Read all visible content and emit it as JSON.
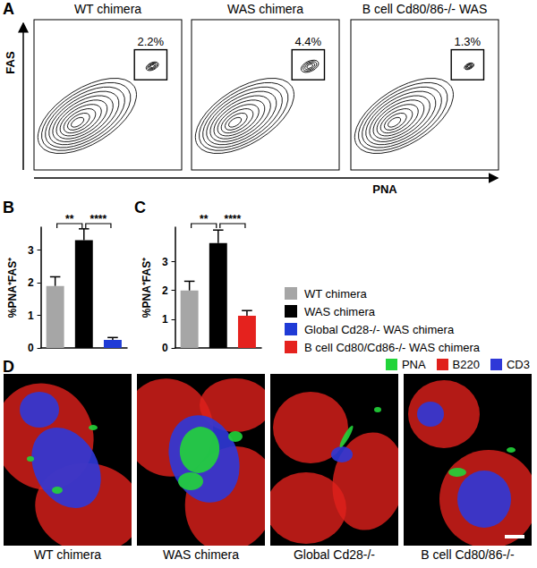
{
  "panel_labels": [
    "A",
    "B",
    "C",
    "D"
  ],
  "flow": {
    "x_label": "PNA",
    "y_label": "FAS",
    "plots": [
      {
        "title": "WT chimera",
        "gate": {
          "value": 2.2,
          "label": "2.2%"
        }
      },
      {
        "title": "WAS chimera",
        "gate": {
          "value": 4.4,
          "label": "4.4%"
        }
      },
      {
        "title": "B cell Cd80/86-/- WAS",
        "gate": {
          "value": 1.3,
          "label": "1.3%"
        }
      }
    ]
  },
  "chart_data": [
    {
      "type": "bar",
      "y_label": "%PNA⁺FAS⁺",
      "categories": [
        "WT chimera",
        "WAS chimera",
        "Global Cd28-/- WAS chimera"
      ],
      "values": [
        1.9,
        3.3,
        0.25
      ],
      "errors": [
        0.28,
        0.35,
        0.07
      ],
      "colors": [
        "#a6a6a6",
        "#000000",
        "#1f3bd6"
      ],
      "ylim": [
        0,
        3.7
      ],
      "yticks": [
        0,
        1,
        2,
        3
      ],
      "grid": false,
      "tick_labels": "y",
      "annotations": [
        {
          "between": [
            0,
            1
          ],
          "text": "**"
        },
        {
          "between": [
            1,
            2
          ],
          "text": "****"
        }
      ]
    },
    {
      "type": "bar",
      "y_label": "%PNA⁺FAS⁺",
      "categories": [
        "WT chimera",
        "WAS chimera",
        "B cell Cd80/Cd86-/- WAS chimera"
      ],
      "values": [
        2.0,
        3.65,
        1.12
      ],
      "errors": [
        0.32,
        0.45,
        0.18
      ],
      "colors": [
        "#a6a6a6",
        "#000000",
        "#e5221e"
      ],
      "ylim": [
        0,
        4.2
      ],
      "yticks": [
        0,
        1,
        2,
        3
      ],
      "grid": false,
      "tick_labels": "y",
      "annotations": [
        {
          "between": [
            0,
            1
          ],
          "text": "**"
        },
        {
          "between": [
            1,
            2
          ],
          "text": "****"
        }
      ]
    }
  ],
  "micrographs": {
    "stains": [
      {
        "name": "PNA",
        "color": "#22d43a"
      },
      {
        "name": "B220",
        "color": "#e0201c"
      },
      {
        "name": "CD3",
        "color": "#2f38d8"
      }
    ],
    "captions": [
      "WT chimera",
      "WAS chimera",
      "Global Cd28-/-",
      "B cell Cd80/86-/-"
    ]
  }
}
